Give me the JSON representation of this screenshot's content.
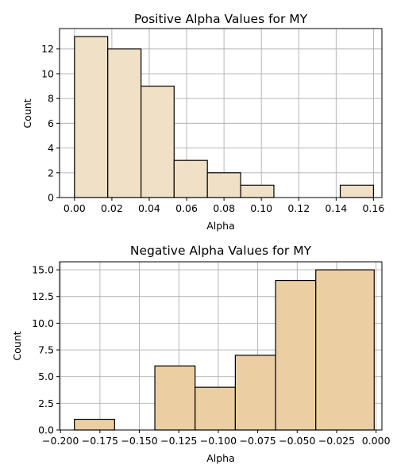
{
  "chart_data": [
    {
      "type": "bar",
      "title": "Positive Alpha Values for MY",
      "xlabel": "Alpha",
      "ylabel": "Count",
      "xlim": [
        -0.008,
        0.1645
      ],
      "ylim": [
        0,
        13.65
      ],
      "xticks": [
        "0.00",
        "0.02",
        "0.04",
        "0.06",
        "0.08",
        "0.10",
        "0.12",
        "0.14",
        "0.16"
      ],
      "xtick_values": [
        0.0,
        0.02,
        0.04,
        0.06,
        0.08,
        0.1,
        0.12,
        0.14,
        0.16
      ],
      "yticks": [
        "0",
        "2",
        "4",
        "6",
        "8",
        "10",
        "12"
      ],
      "ytick_values": [
        0,
        2,
        4,
        6,
        8,
        10,
        12
      ],
      "bins": [
        {
          "x0": 0.0,
          "x1": 0.0178,
          "count": 13
        },
        {
          "x0": 0.0178,
          "x1": 0.0356,
          "count": 12
        },
        {
          "x0": 0.0356,
          "x1": 0.0533,
          "count": 9
        },
        {
          "x0": 0.0533,
          "x1": 0.0711,
          "count": 3
        },
        {
          "x0": 0.0711,
          "x1": 0.0889,
          "count": 2
        },
        {
          "x0": 0.0889,
          "x1": 0.1067,
          "count": 1
        },
        {
          "x0": 0.1067,
          "x1": 0.1244,
          "count": 0
        },
        {
          "x0": 0.1244,
          "x1": 0.1422,
          "count": 0
        },
        {
          "x0": 0.1422,
          "x1": 0.16,
          "count": 1
        }
      ],
      "bar_color": "#f0e0c6",
      "edge_color": "#000000",
      "grid": true
    },
    {
      "type": "bar",
      "title": "Negative Alpha Values for MY",
      "xlabel": "Alpha",
      "ylabel": "Count",
      "xlim": [
        -0.2006,
        0.0037
      ],
      "ylim": [
        0,
        15.75
      ],
      "xticks": [
        "−0.200",
        "−0.175",
        "−0.150",
        "−0.125",
        "−0.100",
        "−0.075",
        "−0.050",
        "−0.025",
        "0.000"
      ],
      "xtick_values": [
        -0.2,
        -0.175,
        -0.15,
        -0.125,
        -0.1,
        -0.075,
        -0.05,
        -0.025,
        0.0
      ],
      "yticks": [
        "0.0",
        "2.5",
        "5.0",
        "7.5",
        "10.0",
        "12.5",
        "15.0"
      ],
      "ytick_values": [
        0,
        2.5,
        5,
        7.5,
        10,
        12.5,
        15
      ],
      "bins": [
        {
          "x0": -0.1912,
          "x1": -0.1657,
          "count": 1
        },
        {
          "x0": -0.1657,
          "x1": -0.1402,
          "count": 0
        },
        {
          "x0": -0.1402,
          "x1": -0.1147,
          "count": 6
        },
        {
          "x0": -0.1147,
          "x1": -0.0892,
          "count": 4
        },
        {
          "x0": -0.0892,
          "x1": -0.0637,
          "count": 7
        },
        {
          "x0": -0.0637,
          "x1": -0.0382,
          "count": 14
        },
        {
          "x0": -0.0382,
          "x1": -0.0012,
          "count": 15
        }
      ],
      "bar_color": "#ebcfa3",
      "edge_color": "#000000",
      "grid": true
    }
  ]
}
